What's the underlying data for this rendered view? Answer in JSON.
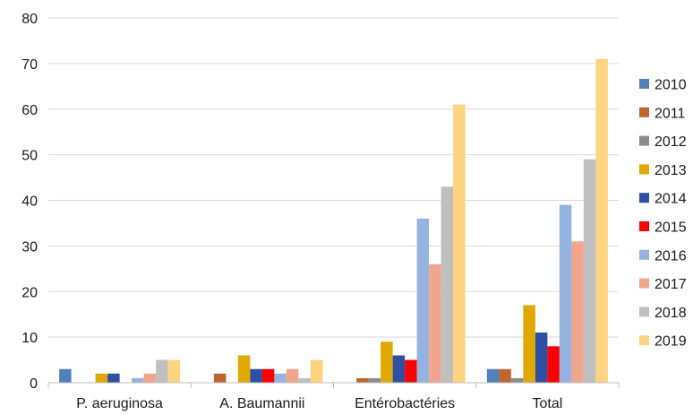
{
  "chart_data": {
    "type": "bar",
    "title": "",
    "xlabel": "",
    "ylabel": "",
    "ylim": [
      0,
      80
    ],
    "yticks": [
      0,
      10,
      20,
      30,
      40,
      50,
      60,
      70,
      80
    ],
    "grid": true,
    "legend_position": "right",
    "categories": [
      "P. aeruginosa",
      "A. Baumannii",
      "Entérobactéries",
      "Total"
    ],
    "series": [
      {
        "name": "2010",
        "color": "#4f81bd",
        "values": [
          3,
          0,
          0,
          3
        ]
      },
      {
        "name": "2011",
        "color": "#c0652b",
        "values": [
          0,
          2,
          1,
          3
        ]
      },
      {
        "name": "2012",
        "color": "#8c8c8c",
        "values": [
          0,
          0,
          1,
          1
        ]
      },
      {
        "name": "2013",
        "color": "#e0a800",
        "values": [
          2,
          6,
          9,
          17
        ]
      },
      {
        "name": "2014",
        "color": "#2e4fa3",
        "values": [
          2,
          3,
          6,
          11
        ]
      },
      {
        "name": "2015",
        "color": "#ff0000",
        "values": [
          0,
          3,
          5,
          8
        ]
      },
      {
        "name": "2016",
        "color": "#95b3e0",
        "values": [
          1,
          2,
          36,
          39
        ]
      },
      {
        "name": "2017",
        "color": "#f0a58c",
        "values": [
          2,
          3,
          26,
          31
        ]
      },
      {
        "name": "2018",
        "color": "#bfbfbf",
        "values": [
          5,
          1,
          43,
          49
        ]
      },
      {
        "name": "2019",
        "color": "#ffd37f",
        "values": [
          5,
          5,
          61,
          71
        ]
      }
    ]
  },
  "colors": {
    "grid": "#d9d9d9",
    "axis": "#bfbfbf",
    "text": "#1a1a1a"
  }
}
